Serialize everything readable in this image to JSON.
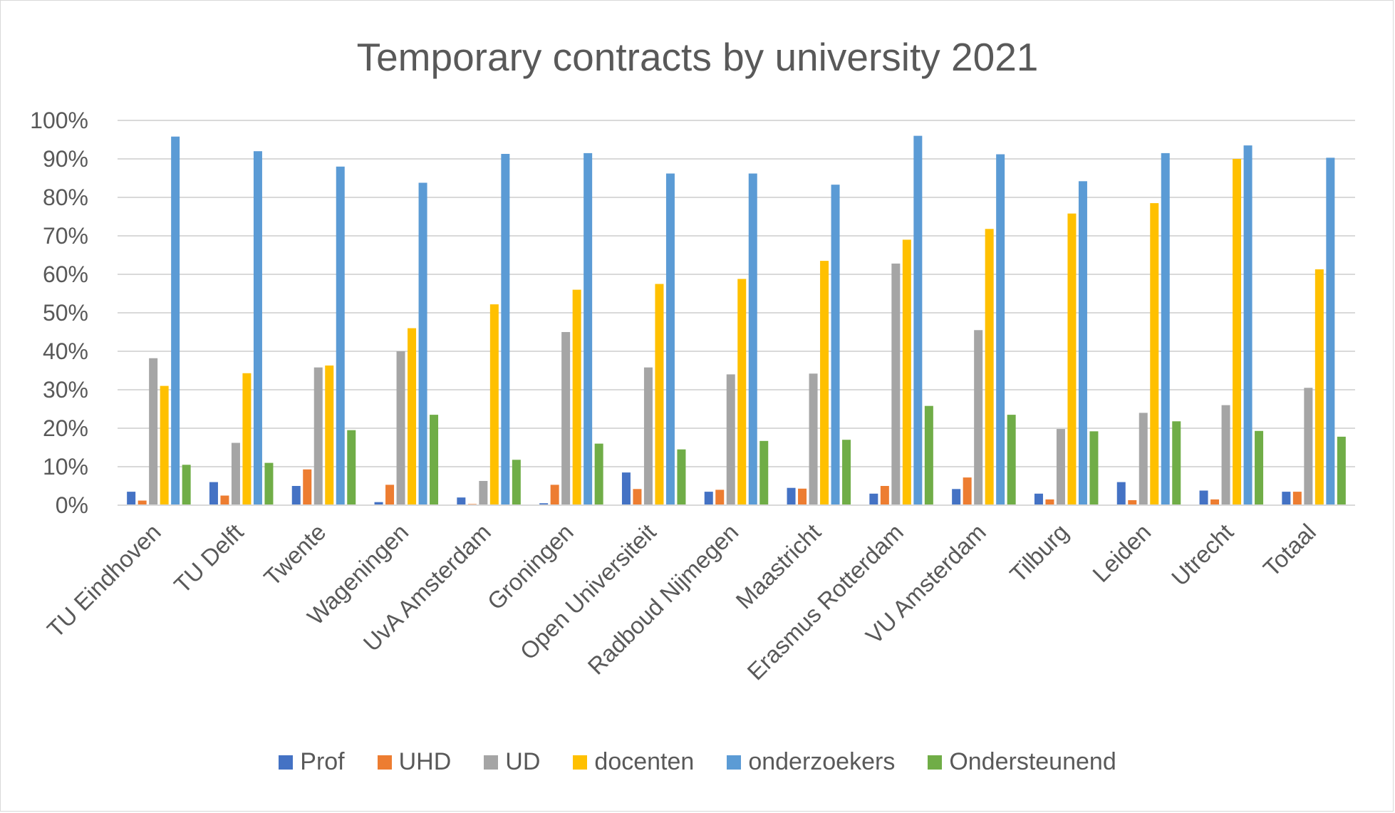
{
  "chart_data": {
    "type": "bar",
    "title": "Temporary contracts by university 2021",
    "xlabel": "",
    "ylabel": "",
    "ylim": [
      0,
      100
    ],
    "y_ticks": [
      "0%",
      "10%",
      "20%",
      "30%",
      "40%",
      "50%",
      "60%",
      "70%",
      "80%",
      "90%",
      "100%"
    ],
    "grid": true,
    "legend_position": "bottom",
    "categories": [
      "TU Eindhoven",
      "TU Delft",
      "Twente",
      "Wageningen",
      "UvA Amsterdam",
      "Groningen",
      "Open Universiteit",
      "Radboud Nijmegen",
      "Maastricht",
      "Erasmus Rotterdam",
      "VU Amsterdam",
      "Tilburg",
      "Leiden",
      "Utrecht",
      "Totaal"
    ],
    "series": [
      {
        "name": "Prof",
        "color": "#4472c4",
        "values": [
          3.5,
          6,
          5,
          0.8,
          2,
          0.5,
          8.5,
          3.5,
          4.5,
          3,
          4.2,
          3,
          6,
          3.8,
          3.5
        ]
      },
      {
        "name": "UHD",
        "color": "#ed7d31",
        "values": [
          1.2,
          2.5,
          9.3,
          5.3,
          0.3,
          5.3,
          4.2,
          4,
          4.3,
          5,
          7.2,
          1.5,
          1.3,
          1.5,
          3.5
        ]
      },
      {
        "name": "UD",
        "color": "#a5a5a5",
        "values": [
          38.2,
          16.2,
          35.8,
          40,
          6.3,
          45,
          35.8,
          34,
          34.2,
          62.8,
          45.5,
          19.8,
          24,
          26,
          30.5
        ]
      },
      {
        "name": "docenten",
        "color": "#ffc000",
        "values": [
          31,
          34.3,
          36.3,
          46,
          52.2,
          56,
          57.5,
          58.8,
          63.5,
          69,
          71.8,
          75.8,
          78.5,
          90,
          61.3
        ]
      },
      {
        "name": "onderzoekers",
        "color": "#5b9bd5",
        "values": [
          95.8,
          92,
          88,
          83.8,
          91.3,
          91.5,
          86.2,
          86.2,
          83.3,
          96,
          91.2,
          84.2,
          91.5,
          93.5,
          90.3
        ]
      },
      {
        "name": "Ondersteunend",
        "color": "#70ad47",
        "values": [
          10.5,
          11,
          19.5,
          23.5,
          11.8,
          16,
          14.5,
          16.7,
          17,
          25.8,
          23.5,
          19.2,
          21.8,
          19.3,
          17.8
        ]
      }
    ]
  }
}
